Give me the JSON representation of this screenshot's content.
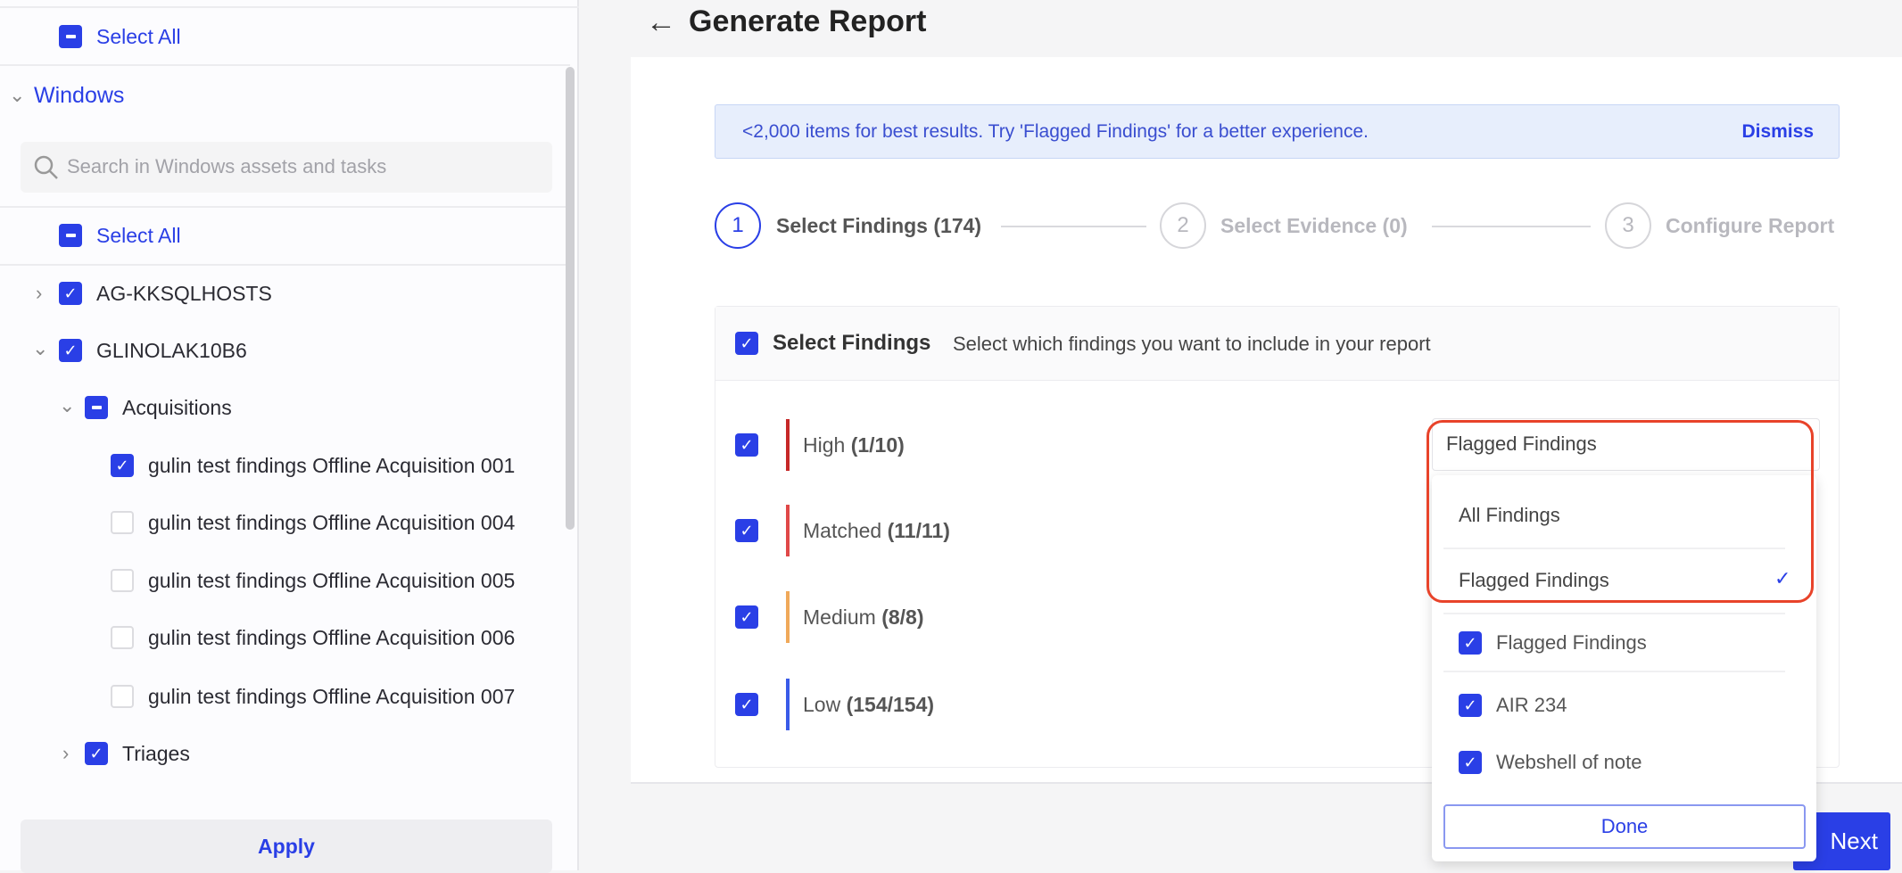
{
  "sidebar": {
    "top_select_all": "Select All",
    "section_title": "Windows",
    "search_placeholder": "Search in Windows assets and tasks",
    "select_all": "Select All",
    "tree": [
      {
        "label": "AG-KKSQLHOSTS",
        "checked": true
      },
      {
        "label": "GLINOLAK10B6",
        "checked": true
      },
      {
        "label": "Acquisitions",
        "checked": "partial"
      },
      {
        "label": "gulin test findings Offline Acquisition 001",
        "checked": true
      },
      {
        "label": "gulin test findings Offline Acquisition 004",
        "checked": false
      },
      {
        "label": "gulin test findings Offline Acquisition 005",
        "checked": false
      },
      {
        "label": "gulin test findings Offline Acquisition 006",
        "checked": false
      },
      {
        "label": "gulin test findings Offline Acquisition 007",
        "checked": false
      },
      {
        "label": "Triages",
        "checked": true
      }
    ],
    "apply": "Apply"
  },
  "header": {
    "title": "Generate Report"
  },
  "banner": {
    "text": "<2,000 items for best results. Try 'Flagged Findings' for a better experience.",
    "dismiss": "Dismiss"
  },
  "steps": [
    {
      "num": "1",
      "label": "Select Findings (174)",
      "active": true
    },
    {
      "num": "2",
      "label": "Select Evidence (0)",
      "active": false
    },
    {
      "num": "3",
      "label": "Configure Report",
      "active": false
    }
  ],
  "findings": {
    "title": "Select Findings",
    "subtitle": "Select which findings you want to include in your report",
    "rows": [
      {
        "name": "High",
        "count": "(1/10)",
        "color": "#c62828"
      },
      {
        "name": "Matched",
        "count": "(11/11)",
        "color": "#e04848"
      },
      {
        "name": "Medium",
        "count": "(8/8)",
        "color": "#f0a95a"
      },
      {
        "name": "Low",
        "count": "(154/154)",
        "color": "#3a5be8"
      }
    ]
  },
  "dropdown": {
    "selected": "Flagged Findings",
    "options": [
      "All Findings",
      "Flagged Findings"
    ],
    "tags": [
      "Flagged Findings",
      "AIR 234",
      "Webshell of note"
    ],
    "done": "Done"
  },
  "footer": {
    "next": "Next"
  },
  "colors": {
    "accent": "#2a3fe6",
    "highlight": "#e8432a"
  }
}
